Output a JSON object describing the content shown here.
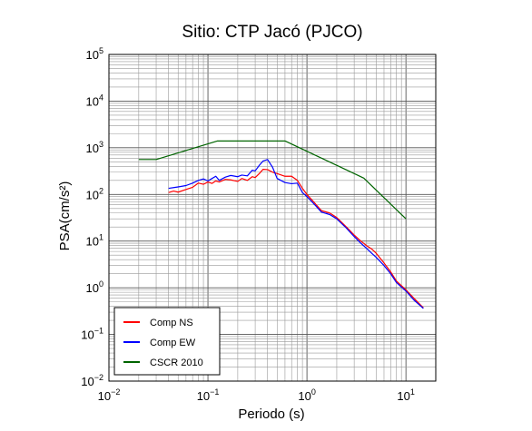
{
  "chart_data": {
    "type": "line",
    "title": "Sitio: CTP Jacó (PJCO)",
    "xlabel": "Periodo (s)",
    "ylabel": "PSA(cm/s²)",
    "x_scale": "log",
    "y_scale": "log",
    "xlim": [
      0.01,
      20
    ],
    "ylim": [
      0.01,
      100000
    ],
    "grid": true,
    "legend_position": "bottom-left",
    "x_tick_labels": [
      {
        "value": 0.01,
        "base": "10",
        "exp": "−2"
      },
      {
        "value": 0.1,
        "base": "10",
        "exp": "−1"
      },
      {
        "value": 1,
        "base": "10",
        "exp": "0"
      },
      {
        "value": 10,
        "base": "10",
        "exp": "1"
      }
    ],
    "y_tick_labels": [
      {
        "value": 0.01,
        "base": "10",
        "exp": "−2"
      },
      {
        "value": 0.1,
        "base": "10",
        "exp": "−1"
      },
      {
        "value": 1,
        "base": "10",
        "exp": "0"
      },
      {
        "value": 10,
        "base": "10",
        "exp": "1"
      },
      {
        "value": 100,
        "base": "10",
        "exp": "2"
      },
      {
        "value": 1000,
        "base": "10",
        "exp": "3"
      },
      {
        "value": 10000,
        "base": "10",
        "exp": "4"
      },
      {
        "value": 100000,
        "base": "10",
        "exp": "5"
      }
    ],
    "series": [
      {
        "name": "Comp NS",
        "color": "#ff0000",
        "x": [
          0.04,
          0.045,
          0.05,
          0.06,
          0.07,
          0.08,
          0.09,
          0.1,
          0.11,
          0.12,
          0.13,
          0.15,
          0.17,
          0.2,
          0.22,
          0.25,
          0.28,
          0.3,
          0.33,
          0.36,
          0.4,
          0.45,
          0.5,
          0.6,
          0.7,
          0.8,
          0.9,
          1.0,
          1.2,
          1.4,
          1.7,
          2.0,
          2.5,
          3.0,
          3.5,
          4.0,
          4.5,
          5.0,
          6.0,
          7.0,
          8.0,
          10.0,
          12.0,
          15.0
        ],
        "y": [
          110,
          118,
          112,
          128,
          142,
          175,
          165,
          185,
          172,
          195,
          185,
          210,
          205,
          190,
          220,
          200,
          240,
          230,
          280,
          345,
          340,
          300,
          280,
          245,
          245,
          200,
          135,
          100,
          65,
          45,
          40,
          32,
          20,
          13.5,
          10,
          8,
          6.8,
          5.5,
          3.4,
          2.2,
          1.4,
          0.9,
          0.6,
          0.37
        ]
      },
      {
        "name": "Comp EW",
        "color": "#0000ff",
        "x": [
          0.04,
          0.045,
          0.05,
          0.06,
          0.07,
          0.08,
          0.09,
          0.1,
          0.11,
          0.12,
          0.13,
          0.15,
          0.17,
          0.2,
          0.22,
          0.25,
          0.28,
          0.3,
          0.33,
          0.36,
          0.4,
          0.45,
          0.5,
          0.6,
          0.7,
          0.8,
          0.9,
          1.0,
          1.2,
          1.4,
          1.7,
          2.0,
          2.5,
          3.0,
          3.5,
          4.0,
          4.5,
          5.0,
          6.0,
          7.0,
          8.0,
          10.0,
          12.0,
          15.0
        ],
        "y": [
          135,
          140,
          145,
          155,
          175,
          200,
          215,
          195,
          220,
          245,
          200,
          235,
          255,
          240,
          260,
          250,
          330,
          320,
          420,
          520,
          560,
          380,
          220,
          180,
          170,
          175,
          110,
          90,
          60,
          42,
          37,
          30,
          19,
          12.5,
          9,
          7,
          5.5,
          4.5,
          3,
          2,
          1.3,
          0.85,
          0.55,
          0.36
        ]
      },
      {
        "name": "CSCR 2010",
        "color": "#006400",
        "x": [
          0.02,
          0.03,
          0.125,
          0.6,
          3.75,
          10.0
        ],
        "y": [
          560,
          560,
          1400,
          1400,
          224,
          30
        ]
      }
    ]
  }
}
